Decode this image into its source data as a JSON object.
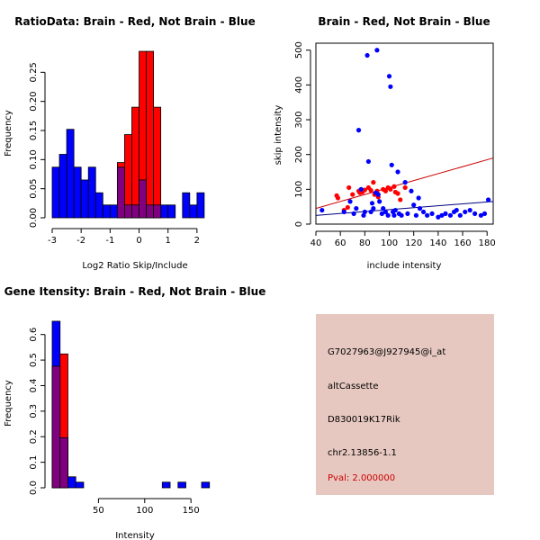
{
  "chart_data": [
    {
      "type": "histogram",
      "title": "RatioData: Brain - Red, Not Brain - Blue",
      "xlabel": "Log2 Ratio Skip/Include",
      "ylabel": "Frequency",
      "xlim": [
        -3,
        2.75
      ],
      "ylim": [
        0,
        0.3
      ],
      "x_ticks": [
        -3,
        -2,
        -1,
        0,
        1,
        2
      ],
      "x_tick_labels": [
        "-3",
        "-2",
        "-1",
        "0",
        "1",
        "2"
      ],
      "y_ticks": [
        0,
        0.05,
        0.1,
        0.15,
        0.2,
        0.25
      ],
      "y_tick_labels": [
        "0.00",
        "0.05",
        "0.10",
        "0.15",
        "0.20",
        "0.25"
      ],
      "bin_width": 0.25,
      "series": [
        {
          "name": "Not Brain",
          "color": "#0000ff",
          "bins": [
            [
              -3.0,
              0.087
            ],
            [
              -2.75,
              0.109
            ],
            [
              -2.5,
              0.152
            ],
            [
              -2.25,
              0.087
            ],
            [
              -2.0,
              0.065
            ],
            [
              -1.75,
              0.087
            ],
            [
              -1.5,
              0.043
            ],
            [
              -1.25,
              0.022
            ],
            [
              -1.0,
              0.022
            ],
            [
              -0.75,
              0.087
            ],
            [
              -0.5,
              0.022
            ],
            [
              -0.25,
              0.022
            ],
            [
              0.0,
              0.065
            ],
            [
              0.25,
              0.022
            ],
            [
              0.5,
              0.022
            ],
            [
              0.75,
              0.022
            ],
            [
              1.0,
              0.022
            ],
            [
              1.5,
              0.043
            ],
            [
              1.75,
              0.022
            ],
            [
              2.0,
              0.043
            ]
          ]
        },
        {
          "name": "Brain",
          "color": "#ff0000",
          "bins": [
            [
              -0.75,
              0.095
            ],
            [
              -0.5,
              0.143
            ],
            [
              -0.25,
              0.19
            ],
            [
              0.0,
              0.286
            ],
            [
              0.25,
              0.286
            ],
            [
              0.5,
              0.19
            ]
          ]
        }
      ]
    },
    {
      "type": "scatter",
      "title": "Brain - Red, Not Brain - Blue",
      "xlabel": "include intensity",
      "ylabel": "skip intensity",
      "xlim": [
        40,
        185
      ],
      "ylim": [
        0,
        520
      ],
      "x_ticks": [
        40,
        60,
        80,
        100,
        120,
        140,
        160,
        180
      ],
      "x_tick_labels": [
        "40",
        "60",
        "80",
        "100",
        "120",
        "140",
        "160",
        "180"
      ],
      "y_ticks": [
        0,
        100,
        200,
        300,
        400,
        500
      ],
      "y_tick_labels": [
        "0",
        "100",
        "200",
        "300",
        "400",
        "500"
      ],
      "series": [
        {
          "name": "Brain",
          "color": "#ff0000",
          "points": [
            [
              57,
              82
            ],
            [
              58,
              75
            ],
            [
              63,
              40
            ],
            [
              66,
              48
            ],
            [
              67,
              105
            ],
            [
              70,
              85
            ],
            [
              75,
              95
            ],
            [
              76,
              90
            ],
            [
              78,
              92
            ],
            [
              80,
              98
            ],
            [
              83,
              105
            ],
            [
              85,
              97
            ],
            [
              87,
              120
            ],
            [
              88,
              85
            ],
            [
              90,
              95
            ],
            [
              91,
              78
            ],
            [
              95,
              100
            ],
            [
              97,
              95
            ],
            [
              99,
              105
            ],
            [
              101,
              100
            ],
            [
              104,
              108
            ],
            [
              105,
              92
            ],
            [
              107,
              88
            ],
            [
              109,
              70
            ],
            [
              113,
              105
            ]
          ],
          "fit_line": {
            "x": [
              40,
              185
            ],
            "y": [
              45,
              190
            ]
          }
        },
        {
          "name": "Not Brain",
          "color": "#0000ff",
          "points": [
            [
              45,
              40
            ],
            [
              63,
              35
            ],
            [
              68,
              65
            ],
            [
              71,
              30
            ],
            [
              73,
              45
            ],
            [
              75,
              270
            ],
            [
              77,
              100
            ],
            [
              79,
              25
            ],
            [
              80,
              35
            ],
            [
              82,
              485
            ],
            [
              83,
              180
            ],
            [
              85,
              35
            ],
            [
              86,
              60
            ],
            [
              87,
              45
            ],
            [
              89,
              90
            ],
            [
              90,
              500
            ],
            [
              91,
              85
            ],
            [
              92,
              65
            ],
            [
              94,
              30
            ],
            [
              95,
              45
            ],
            [
              97,
              35
            ],
            [
              99,
              25
            ],
            [
              100,
              425
            ],
            [
              101,
              395
            ],
            [
              102,
              170
            ],
            [
              103,
              35
            ],
            [
              104,
              25
            ],
            [
              105,
              40
            ],
            [
              107,
              150
            ],
            [
              108,
              30
            ],
            [
              110,
              25
            ],
            [
              113,
              120
            ],
            [
              115,
              30
            ],
            [
              118,
              95
            ],
            [
              120,
              55
            ],
            [
              122,
              25
            ],
            [
              124,
              75
            ],
            [
              125,
              45
            ],
            [
              128,
              35
            ],
            [
              131,
              25
            ],
            [
              135,
              30
            ],
            [
              140,
              20
            ],
            [
              143,
              25
            ],
            [
              146,
              30
            ],
            [
              150,
              25
            ],
            [
              153,
              35
            ],
            [
              155,
              40
            ],
            [
              158,
              25
            ],
            [
              162,
              35
            ],
            [
              166,
              40
            ],
            [
              170,
              30
            ],
            [
              175,
              25
            ],
            [
              178,
              30
            ],
            [
              181,
              70
            ]
          ],
          "fit_line": {
            "x": [
              40,
              185
            ],
            "y": [
              25,
              65
            ]
          }
        }
      ]
    },
    {
      "type": "histogram",
      "title": "Gene Itensity: Brain - Red, Not Brain - Blue",
      "xlabel": "Intensity",
      "ylabel": "Frequency",
      "xlim": [
        0,
        180
      ],
      "ylim": [
        0,
        0.68
      ],
      "x_ticks": [
        50,
        100,
        150
      ],
      "x_tick_labels": [
        "50",
        "100",
        "150"
      ],
      "y_ticks": [
        0,
        0.1,
        0.2,
        0.3,
        0.4,
        0.5,
        0.6
      ],
      "y_tick_labels": [
        "0.0",
        "0.1",
        "0.2",
        "0.3",
        "0.4",
        "0.5",
        "0.6"
      ],
      "bin_width": 8.5,
      "series": [
        {
          "name": "Not Brain",
          "color": "#0000ff",
          "bins": [
            [
              0,
              0.652
            ],
            [
              8.5,
              0.196
            ],
            [
              17,
              0.043
            ],
            [
              25.5,
              0.022
            ],
            [
              119,
              0.022
            ],
            [
              136,
              0.022
            ],
            [
              161.5,
              0.022
            ]
          ]
        },
        {
          "name": "Brain",
          "color": "#ff0000",
          "bins": [
            [
              0,
              0.476
            ],
            [
              8.5,
              0.524
            ]
          ]
        }
      ]
    }
  ],
  "info_panel": {
    "probe_id": "G7027963@J927945@i_at",
    "event_type": "altCassette",
    "gene_name": "D830019K17Rik",
    "location": "chr2.13856-1.1",
    "pval": "Pval: 2.000000",
    "background_color": "#e6c8c0",
    "pval_color": "#cc0000"
  },
  "colors": {
    "red": "#ff0000",
    "blue": "#0000ff",
    "overlap": "#800080"
  }
}
